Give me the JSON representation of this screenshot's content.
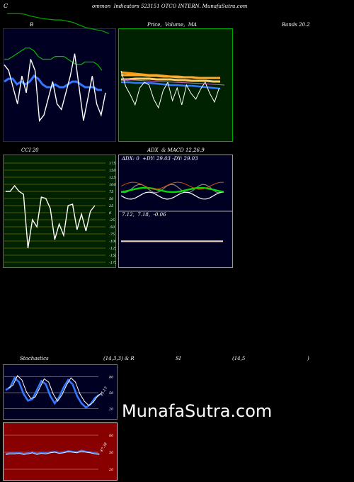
{
  "header": {
    "left_initial": "C",
    "title": "ommon  Indicators 523151 OTCO INTERN. MunafaSutra.com"
  },
  "labels": {
    "bands": "B",
    "bands_right": "Bands 20.2",
    "price": "Price,  Volume,  MA",
    "cci": "CCI 20",
    "adx_macd": "ADX  & MACD 12,26,9",
    "adx_values": "ADX: 0  +DY: 29.03 -DY: 29.03",
    "macd_values": "7.12,  7.18,  -0.06",
    "stoch_title": "Stochastics",
    "stoch_params": "(14,3,3) & R",
    "rsi_title": "SI",
    "rsi_params": "(14,5",
    "rsi_close": ")",
    "stoch_side": "45.13",
    "rsi_side": "47.38"
  },
  "watermark": "MunafaSutra.com",
  "colors": {
    "price_bg": "#002200",
    "price_border": "#00aa00",
    "panel_bg": "#000022",
    "rsi_bg": "#880000",
    "ma": "#ff9900",
    "blue": "#3377ff",
    "green": "#00dd00",
    "orange": "#cc6600"
  },
  "chart_data": [
    {
      "type": "line",
      "name": "bollinger",
      "series": [
        {
          "name": "close",
          "values": [
            40,
            38,
            32,
            26,
            36,
            30,
            42,
            38,
            20,
            22,
            28,
            34,
            26,
            24,
            30,
            36,
            44,
            32,
            20,
            28,
            36,
            26,
            22,
            30
          ]
        },
        {
          "name": "middle",
          "values": [
            34,
            35,
            35,
            33,
            34,
            33,
            34,
            36,
            35,
            33,
            32,
            32,
            33,
            32,
            32,
            33,
            34,
            34,
            33,
            32,
            32,
            32,
            31,
            31
          ]
        },
        {
          "name": "upper",
          "values": [
            42,
            42,
            43,
            44,
            45,
            46,
            46,
            45,
            43,
            42,
            42,
            42,
            43,
            43,
            43,
            42,
            41,
            40,
            40,
            41,
            41,
            41,
            40,
            38
          ]
        },
        {
          "name": "lower",
          "values": [
            26,
            26,
            25,
            24,
            24,
            23,
            23,
            24,
            24,
            24,
            24,
            24,
            23,
            23,
            23,
            24,
            25,
            26,
            26,
            25,
            25,
            25,
            24,
            24
          ]
        }
      ]
    },
    {
      "type": "line",
      "name": "cci",
      "ylim": [
        -175,
        175
      ],
      "yticks": [
        175,
        150,
        125,
        100,
        75,
        50,
        25,
        0,
        -25,
        -50,
        -75,
        -100,
        -125,
        -150,
        -175
      ],
      "values": [
        75,
        75,
        95,
        75,
        65,
        -125,
        -25,
        -50,
        55,
        50,
        15,
        -95,
        -40,
        -80,
        25,
        30,
        -60,
        -5,
        -65,
        5,
        25
      ]
    },
    {
      "type": "line",
      "name": "stochastics",
      "yticks": [
        80,
        50,
        20
      ],
      "values": [
        55,
        60,
        78,
        70,
        48,
        35,
        38,
        55,
        72,
        66,
        44,
        30,
        42,
        60,
        74,
        66,
        44,
        30,
        22,
        28,
        40,
        46
      ]
    },
    {
      "type": "line",
      "name": "rsi",
      "yticks": [
        80,
        50,
        20
      ],
      "values": [
        47,
        48,
        48,
        49,
        47,
        48,
        50,
        47,
        49,
        48,
        50,
        51,
        49,
        50,
        52,
        51,
        50,
        53,
        51,
        50,
        48,
        47
      ]
    }
  ]
}
